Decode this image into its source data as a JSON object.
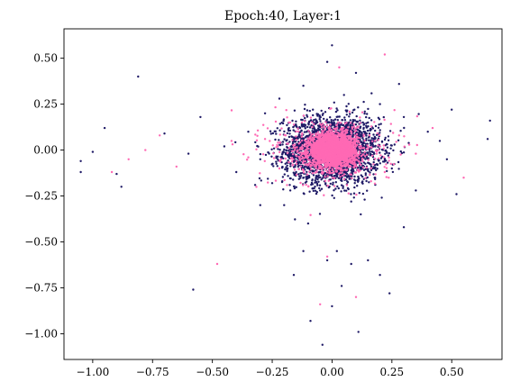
{
  "chart_data": {
    "type": "scatter",
    "title": "Epoch:40, Layer:1",
    "xlabel": "",
    "ylabel": "",
    "xlim": [
      -1.12,
      0.71
    ],
    "ylim": [
      -1.14,
      0.66
    ],
    "x_ticks": [
      -1.0,
      -0.75,
      -0.5,
      -0.25,
      0.0,
      0.25,
      0.5
    ],
    "x_tick_labels": [
      "−1.00",
      "−0.75",
      "−0.50",
      "−0.25",
      "0.00",
      "0.25",
      "0.50"
    ],
    "y_ticks": [
      0.5,
      0.25,
      0.0,
      -0.25,
      -0.5,
      -0.75,
      -1.0
    ],
    "y_tick_labels": [
      "0.50",
      "0.25",
      "0.00",
      "−0.25",
      "−0.50",
      "−0.75",
      "−1.00"
    ],
    "grid": false,
    "legend": "none",
    "series": [
      {
        "color": "#1f1a66",
        "points": [
          [
            -1.05,
            -0.06
          ],
          [
            -1.05,
            -0.12
          ],
          [
            -1.0,
            -0.01
          ],
          [
            -0.95,
            0.12
          ],
          [
            -0.9,
            -0.13
          ],
          [
            -0.88,
            -0.2
          ],
          [
            -0.81,
            0.4
          ],
          [
            -0.58,
            -0.76
          ],
          [
            -0.7,
            0.09
          ],
          [
            -0.6,
            -0.02
          ],
          [
            -0.55,
            0.18
          ],
          [
            -0.45,
            0.02
          ],
          [
            -0.4,
            -0.12
          ],
          [
            -0.35,
            0.1
          ],
          [
            -0.3,
            -0.05
          ],
          [
            -0.28,
            0.2
          ],
          [
            -0.25,
            -0.18
          ],
          [
            -0.22,
            0.28
          ],
          [
            -0.2,
            -0.3
          ],
          [
            -0.18,
            0.12
          ],
          [
            -0.15,
            -0.12
          ],
          [
            -0.12,
            0.35
          ],
          [
            -0.1,
            -0.4
          ],
          [
            -0.08,
            0.22
          ],
          [
            -0.05,
            -0.22
          ],
          [
            -0.02,
            0.48
          ],
          [
            0.0,
            0.57
          ],
          [
            0.02,
            -0.55
          ],
          [
            0.05,
            0.3
          ],
          [
            0.08,
            -0.28
          ],
          [
            0.1,
            0.42
          ],
          [
            0.12,
            -0.35
          ],
          [
            0.15,
            0.15
          ],
          [
            0.18,
            -0.15
          ],
          [
            0.2,
            0.25
          ],
          [
            0.25,
            -0.1
          ],
          [
            0.3,
            0.18
          ],
          [
            0.35,
            -0.22
          ],
          [
            0.4,
            0.1
          ],
          [
            0.45,
            0.05
          ],
          [
            0.5,
            0.22
          ],
          [
            0.52,
            -0.24
          ],
          [
            0.65,
            0.06
          ],
          [
            0.66,
            0.16
          ],
          [
            0.48,
            -0.05
          ],
          [
            -0.04,
            -1.06
          ],
          [
            0.0,
            -0.85
          ],
          [
            -0.09,
            -0.93
          ],
          [
            0.04,
            -0.74
          ],
          [
            0.11,
            -0.99
          ],
          [
            0.24,
            -0.78
          ],
          [
            0.2,
            -0.68
          ],
          [
            -0.16,
            -0.68
          ],
          [
            0.08,
            -0.62
          ],
          [
            -0.02,
            -0.6
          ],
          [
            0.15,
            -0.6
          ],
          [
            -0.12,
            -0.55
          ],
          [
            0.3,
            -0.42
          ],
          [
            -0.3,
            -0.3
          ],
          [
            0.28,
            0.36
          ]
        ]
      },
      {
        "color": "#ff69b4",
        "points": [
          [
            -0.92,
            -0.12
          ],
          [
            -0.85,
            -0.05
          ],
          [
            -0.78,
            0.0
          ],
          [
            -0.72,
            0.08
          ],
          [
            -0.65,
            -0.09
          ],
          [
            -0.48,
            -0.62
          ],
          [
            -0.42,
            0.05
          ],
          [
            -0.35,
            -0.04
          ],
          [
            -0.28,
            0.06
          ],
          [
            -0.22,
            -0.1
          ],
          [
            -0.18,
            0.15
          ],
          [
            -0.12,
            -0.06
          ],
          [
            -0.08,
            0.05
          ],
          [
            -0.04,
            -0.02
          ],
          [
            0.0,
            0.0
          ],
          [
            0.02,
            0.05
          ],
          [
            0.05,
            -0.05
          ],
          [
            0.08,
            0.1
          ],
          [
            0.12,
            -0.08
          ],
          [
            0.18,
            0.05
          ],
          [
            0.22,
            -0.12
          ],
          [
            0.28,
            0.08
          ],
          [
            0.35,
            -0.02
          ],
          [
            0.42,
            0.12
          ],
          [
            0.55,
            -0.15
          ],
          [
            0.03,
            0.45
          ],
          [
            -0.02,
            -0.58
          ],
          [
            0.1,
            -0.8
          ],
          [
            -0.05,
            -0.84
          ],
          [
            0.22,
            0.52
          ]
        ]
      }
    ]
  }
}
